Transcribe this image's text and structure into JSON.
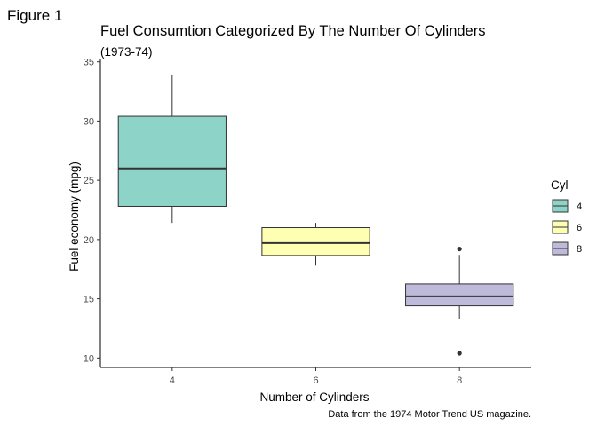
{
  "figure_label": "Figure 1",
  "chart_data": {
    "type": "boxplot",
    "title": "Fuel Consumtion Categorized By The Number Of Cylinders",
    "subtitle": "(1973-74)",
    "xlabel": "Number of Cylinders",
    "ylabel": "Fuel economy (mpg)",
    "caption": "Data from the 1974 Motor Trend US magazine.",
    "categories": [
      "4",
      "6",
      "8"
    ],
    "ylim": [
      9.2,
      35.2
    ],
    "yticks": [
      10,
      15,
      20,
      25,
      30,
      35
    ],
    "grid": false,
    "legend": {
      "title": "Cyl",
      "position": "right"
    },
    "colors": {
      "4": "#8ED3C7",
      "6": "#FFFFB3",
      "8": "#BEBADA"
    },
    "boxes": [
      {
        "category": "4",
        "min": 21.4,
        "q1": 22.8,
        "median": 26.0,
        "q3": 30.4,
        "max": 33.9,
        "outliers": []
      },
      {
        "category": "6",
        "min": 17.8,
        "q1": 18.65,
        "median": 19.7,
        "q3": 21.0,
        "max": 21.4,
        "outliers": []
      },
      {
        "category": "8",
        "min": 13.3,
        "q1": 14.4,
        "median": 15.2,
        "q3": 16.25,
        "max": 18.7,
        "outliers": [
          10.4,
          19.2
        ]
      }
    ]
  }
}
